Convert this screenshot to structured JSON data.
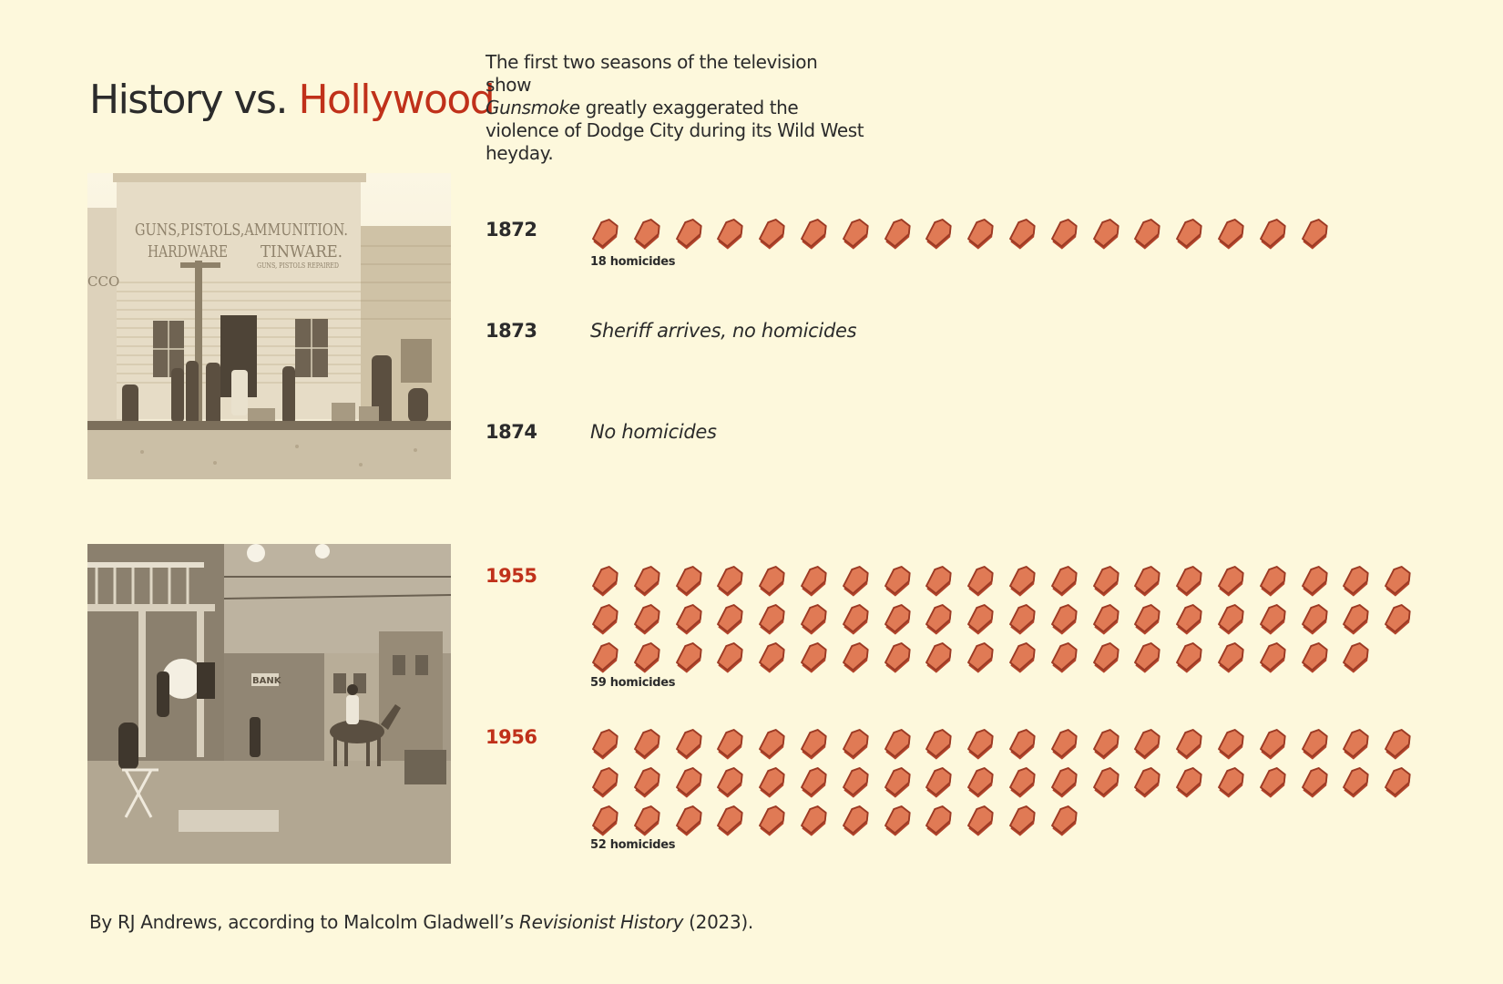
{
  "title": {
    "prefix": "History vs. ",
    "accent": "Hollywood",
    "accent_color": "#c0311a"
  },
  "subtitle": {
    "line1": "The first two seasons of the television show",
    "show": "Gunsmoke",
    "rest": " greatly exaggerated the violence of Dodge City during its Wild West heyday."
  },
  "photos": {
    "historic": {
      "sign1": "GUNS,PISTOLS,AMMUNITION.",
      "sign2a": "HARDWARE",
      "sign2b": "TINWARE.",
      "sign3": "GUNS, PISTOLS REPAIRED",
      "sign4": "CCO"
    },
    "studio": {
      "sign1": "BANK"
    }
  },
  "chart_data": {
    "type": "pictogram",
    "unit": "homicides",
    "icon": "coffin-icon",
    "icon_color": "#e07a55",
    "entries": [
      {
        "year": "1872",
        "homicides": 18,
        "label": "18 homicides",
        "note": "",
        "group": "history"
      },
      {
        "year": "1873",
        "homicides": 0,
        "label": "",
        "note": "Sheriff arrives, no homicides",
        "group": "history"
      },
      {
        "year": "1874",
        "homicides": 0,
        "label": "",
        "note": "No homicides",
        "group": "history"
      },
      {
        "year": "1955",
        "homicides": 59,
        "label": "59 homicides",
        "note": "",
        "group": "hollywood"
      },
      {
        "year": "1956",
        "homicides": 52,
        "label": "52 homicides",
        "note": "",
        "group": "hollywood"
      }
    ]
  },
  "credit": {
    "prefix": "By RJ Andrews, according to Malcolm Gladwell’s ",
    "source": "Revisionist History",
    "suffix": " (2023)."
  }
}
